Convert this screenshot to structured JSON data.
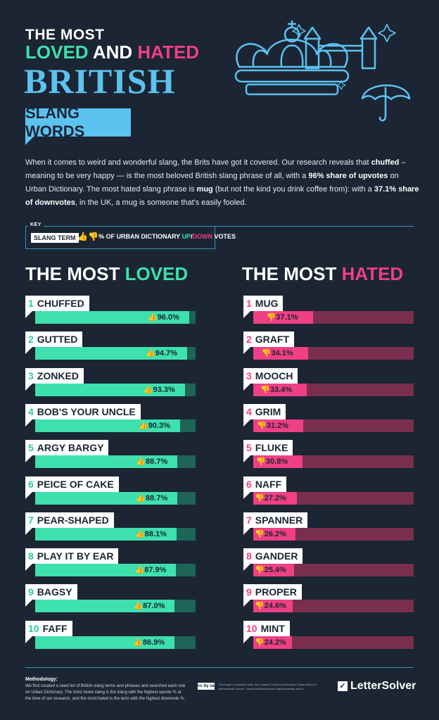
{
  "header": {
    "line1": "THE MOST",
    "loved": "LOVED",
    "and": " AND ",
    "hated": "HATED",
    "line3": "BRITISH",
    "line4": "SLANG WORDS"
  },
  "intro": {
    "p1": "When it comes to weird and wonderful slang, the Brits have got it covered. Our research reveals that ",
    "b1": "chuffed",
    "p2": " – meaning to be very happy — is the most beloved British slang phrase of all, with a ",
    "b2": "96% share of upvotes",
    "p3": " on Urban Dictionary. The most hated slang phrase is ",
    "b3": "mug",
    "p4": " (but not the kind you drink coffee from): with a ",
    "b4": "37.1% share of downvotes",
    "p5": ", in the UK, a mug is someone that's easily fooled."
  },
  "key": {
    "label": "KEY",
    "term": "SLANG TERM",
    "desc_pre": "% OF URBAN DICTIONARY ",
    "up": "UP",
    "slash": "/",
    "down": "DOWN",
    "desc_post": " VOTES"
  },
  "loved_title": {
    "pre": "THE MOST ",
    "hl": "LOVED"
  },
  "hated_title": {
    "pre": "THE MOST ",
    "hl": "HATED"
  },
  "chart_data": [
    {
      "type": "bar",
      "title": "THE MOST LOVED",
      "categories": [
        "CHUFFED",
        "GUTTED",
        "ZONKED",
        "BOB'S YOUR UNCLE",
        "ARGY BARGY",
        "PEICE OF CAKE",
        "PEAR-SHAPED",
        "PLAY IT BY EAR",
        "BAGSY",
        "FAFF"
      ],
      "values": [
        96.0,
        94.7,
        93.3,
        90.3,
        88.7,
        88.7,
        88.1,
        87.9,
        87.0,
        86.9
      ],
      "labels": [
        "96.0%",
        "94.7%",
        "93.3%",
        "90.3%",
        "88.7%",
        "88.7%",
        "88.1%",
        "87.9%",
        "87.0%",
        "86.9%"
      ],
      "ranks": [
        "1",
        "2",
        "3",
        "4",
        "5",
        "6",
        "7",
        "8",
        "9",
        "10"
      ],
      "ylim": [
        0,
        100
      ],
      "color": "#3ee0ae"
    },
    {
      "type": "bar",
      "title": "THE MOST HATED",
      "categories": [
        "MUG",
        "GRAFT",
        "MOOCH",
        "GRIM",
        "FLUKE",
        "NAFF",
        "SPANNER",
        "GANDER",
        "PROPER",
        "MINT"
      ],
      "values": [
        37.1,
        34.1,
        33.4,
        31.2,
        30.8,
        27.2,
        26.2,
        25.4,
        24.6,
        24.2
      ],
      "labels": [
        "37.1%",
        "34.1%",
        "33.4%",
        "31.2%",
        "30.8%",
        "27.2%",
        "26.2%",
        "25.4%",
        "24.6%",
        "24.2%"
      ],
      "ranks": [
        "1",
        "2",
        "3",
        "4",
        "5",
        "6",
        "7",
        "8",
        "9",
        "10"
      ],
      "ylim": [
        0,
        100
      ],
      "color": "#ef3f85"
    }
  ],
  "footer": {
    "method_title": "Methodology:",
    "method_text": "We first created a seed list of British slang terms and phrases and searched each one on Urban Dictionary. The most loved slang is the slang with the highest upvote % at the time of our research, and the most hated is the term with the highest downvote %.",
    "cc": "cc by sa",
    "license": "This image is licensed under the Creative Commons Attribution-Share Alike 4.0 International License - www.creativecommons.org/licenses/by-sa/4.0",
    "brand": "LetterSolver",
    "brand_mark": "✓"
  },
  "icons": {
    "thumb_up": "thumbs-up-icon",
    "thumb_down": "thumbs-down-icon",
    "crown": "crown-illustration",
    "bridge": "tower-bridge-illustration",
    "umbrella": "umbrella-illustration"
  }
}
